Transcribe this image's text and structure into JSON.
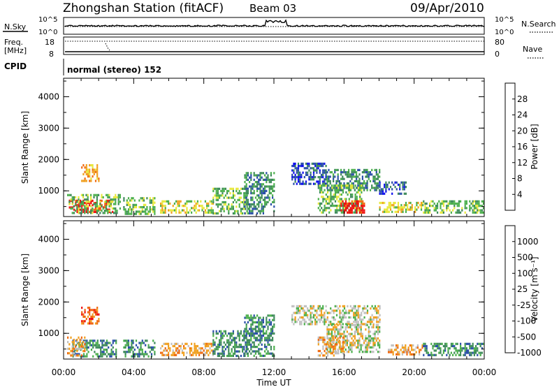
{
  "header": {
    "title": "Zhongshan Station (fitACF)",
    "beam": "Beam 03",
    "date": "09/Apr/2010"
  },
  "summary": {
    "nsky_label": "N.Sky",
    "nsky_ticks": [
      "10^5",
      "10^0"
    ],
    "nsearch_label": "N.Search",
    "nsearch_ticks": [
      "10^5",
      "10^0"
    ],
    "freq_label": "Freq.",
    "freq_unit": "[MHz]",
    "freq_ticks": [
      "18",
      "8"
    ],
    "nave_label": "Nave",
    "nave_ticks": [
      "80",
      "0"
    ],
    "cpid_label": "CPID",
    "cpid_text": "normal (stereo) 152"
  },
  "colors": {
    "power": [
      "#1010ee",
      "#2a4fa8",
      "#3e8a5a",
      "#4cb04c",
      "#e8e83c",
      "#f0a020",
      "#f06a10",
      "#ee1010"
    ],
    "velocity": [
      "#ee1010",
      "#f06a10",
      "#f0a020",
      "#c0c0c0",
      "#4cb04c",
      "#3e8a5a",
      "#2a4fa8",
      "#1010ee"
    ]
  },
  "chart_data": [
    {
      "type": "heatmap",
      "name": "power",
      "xlabel": "",
      "ylabel": "Slant Range [km]",
      "x_ticks": [
        "00:00",
        "04:00",
        "08:00",
        "12:00",
        "16:00",
        "20:00",
        "00:00"
      ],
      "xlim_hours": [
        0,
        24
      ],
      "y_ticks": [
        "4000",
        "3000",
        "2000",
        "1000"
      ],
      "ylim_km": [
        180,
        4590
      ],
      "colorbar_label": "Power [dB]",
      "colorbar_ticks": [
        "28",
        "24",
        "20",
        "16",
        "12",
        "8",
        "4"
      ],
      "colorbar_range": [
        0,
        32
      ],
      "regions": [
        {
          "x": [
            0.3,
            2.8
          ],
          "y": [
            300,
            720
          ],
          "level": 7
        },
        {
          "x": [
            0.2,
            3.2
          ],
          "y": [
            300,
            900
          ],
          "level": 3
        },
        {
          "x": [
            1.0,
            2.0
          ],
          "y": [
            1300,
            1850
          ],
          "level": 5
        },
        {
          "x": [
            3.4,
            5.2
          ],
          "y": [
            300,
            800
          ],
          "level": 3
        },
        {
          "x": [
            5.5,
            8.5
          ],
          "y": [
            300,
            700
          ],
          "level": 4
        },
        {
          "x": [
            8.5,
            10.5
          ],
          "y": [
            300,
            1100
          ],
          "level": 3
        },
        {
          "x": [
            10.3,
            12.0
          ],
          "y": [
            300,
            1600
          ],
          "level": 2
        },
        {
          "x": [
            13.0,
            15.0
          ],
          "y": [
            1200,
            1900
          ],
          "level": 1
        },
        {
          "x": [
            15.0,
            18.0
          ],
          "y": [
            1000,
            1700
          ],
          "level": 2
        },
        {
          "x": [
            14.5,
            17.0
          ],
          "y": [
            300,
            1200
          ],
          "level": 3
        },
        {
          "x": [
            15.8,
            17.2
          ],
          "y": [
            300,
            700
          ],
          "level": 7
        },
        {
          "x": [
            18.0,
            19.5
          ],
          "y": [
            900,
            1300
          ],
          "level": 1
        },
        {
          "x": [
            18.0,
            20.5
          ],
          "y": [
            300,
            650
          ],
          "level": 4
        },
        {
          "x": [
            20.5,
            24.0
          ],
          "y": [
            300,
            700
          ],
          "level": 3
        }
      ]
    },
    {
      "type": "heatmap",
      "name": "velocity",
      "xlabel": "Time UT",
      "ylabel": "Slant Range [km]",
      "x_ticks": [
        "00:00",
        "04:00",
        "08:00",
        "12:00",
        "16:00",
        "20:00",
        "00:00"
      ],
      "xlim_hours": [
        0,
        24
      ],
      "y_ticks": [
        "4000",
        "3000",
        "2000",
        "1000"
      ],
      "ylim_km": [
        180,
        4590
      ],
      "colorbar_label": "Velocity [m s⁻¹]",
      "colorbar_ticks": [
        "1000",
        "500",
        "100",
        "25",
        "-25",
        "-100",
        "-500",
        "-1000"
      ],
      "regions": [
        {
          "x": [
            0.5,
            3.0
          ],
          "y": [
            300,
            800
          ],
          "level": 5
        },
        {
          "x": [
            0.2,
            1.2
          ],
          "y": [
            300,
            900
          ],
          "level": 2
        },
        {
          "x": [
            1.0,
            2.0
          ],
          "y": [
            1300,
            1850
          ],
          "level": 1
        },
        {
          "x": [
            3.4,
            5.2
          ],
          "y": [
            300,
            800
          ],
          "level": 5
        },
        {
          "x": [
            5.5,
            8.5
          ],
          "y": [
            300,
            700
          ],
          "level": 2
        },
        {
          "x": [
            8.5,
            10.5
          ],
          "y": [
            300,
            1100
          ],
          "level": 5
        },
        {
          "x": [
            10.3,
            12.0
          ],
          "y": [
            300,
            1600
          ],
          "level": 5
        },
        {
          "x": [
            13.0,
            18.0
          ],
          "y": [
            1300,
            1900
          ],
          "level": 3
        },
        {
          "x": [
            15.0,
            18.0
          ],
          "y": [
            400,
            1300
          ],
          "level": 3
        },
        {
          "x": [
            14.5,
            16.0
          ],
          "y": [
            300,
            900
          ],
          "level": 2
        },
        {
          "x": [
            18.5,
            20.5
          ],
          "y": [
            300,
            650
          ],
          "level": 2
        },
        {
          "x": [
            20.5,
            24.0
          ],
          "y": [
            300,
            700
          ],
          "level": 5
        }
      ]
    }
  ]
}
